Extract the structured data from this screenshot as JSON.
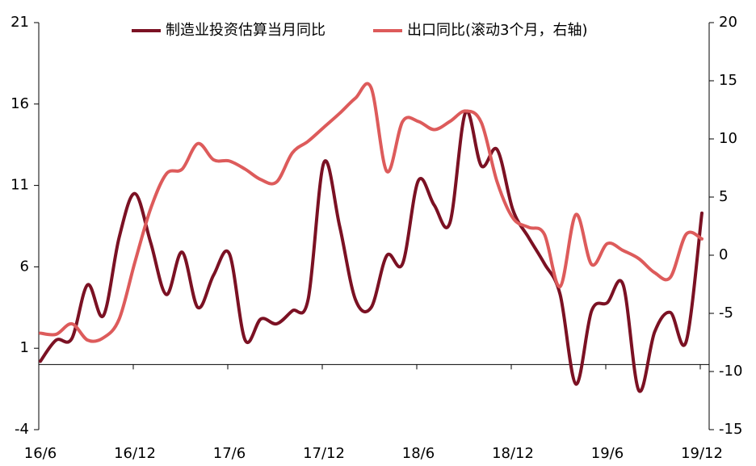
{
  "chart_data": {
    "type": "line",
    "categories": [
      "16/6",
      null,
      null,
      null,
      null,
      null,
      "16/12",
      null,
      null,
      null,
      null,
      null,
      "17/6",
      null,
      null,
      null,
      null,
      null,
      "17/12",
      null,
      null,
      null,
      null,
      null,
      "18/6",
      null,
      null,
      null,
      null,
      null,
      "18/12",
      null,
      null,
      null,
      null,
      null,
      "19/6",
      null,
      null,
      null,
      null,
      null,
      "19/12"
    ],
    "series": [
      {
        "name": "制造业投资估算当月同比",
        "color": "#7b1123",
        "values": [
          0.2,
          1.5,
          1.6,
          4.9,
          3.0,
          7.8,
          10.5,
          7.5,
          4.3,
          6.9,
          3.5,
          5.5,
          6.8,
          1.5,
          2.8,
          2.5,
          3.3,
          4.0,
          12.4,
          8.5,
          4.0,
          3.5,
          6.7,
          6.2,
          11.3,
          9.8,
          8.7,
          15.5,
          12.2,
          13.2,
          9.5,
          7.8,
          6.2,
          4.3,
          -1.2,
          3.3,
          3.8,
          4.9,
          -1.6,
          2.0,
          3.2,
          1.4,
          9.3
        ]
      },
      {
        "name": "出口同比(滚动3个月，右轴)",
        "color": "#dd5b5b",
        "axis": "y2",
        "values": [
          -6.7,
          -6.8,
          -5.9,
          -7.3,
          -7.1,
          -5.5,
          -0.6,
          4.0,
          7.0,
          7.4,
          9.6,
          8.2,
          8.1,
          7.4,
          6.5,
          6.3,
          8.8,
          9.8,
          11.0,
          12.2,
          13.5,
          14.4,
          7.2,
          11.5,
          11.5,
          10.8,
          11.5,
          12.4,
          11.4,
          6.3,
          3.2,
          2.4,
          1.8,
          -2.7,
          3.5,
          -0.8,
          1.0,
          0.4,
          -0.3,
          -1.5,
          -1.9,
          1.8,
          1.4
        ]
      }
    ],
    "ylim": [
      -4,
      21
    ],
    "yticks": [
      -4,
      1,
      6,
      11,
      16,
      21
    ],
    "y2lim": [
      -15,
      20
    ],
    "y2ticks": [
      -15,
      -10,
      -5,
      0,
      5,
      10,
      15,
      20
    ],
    "legend": "top"
  }
}
